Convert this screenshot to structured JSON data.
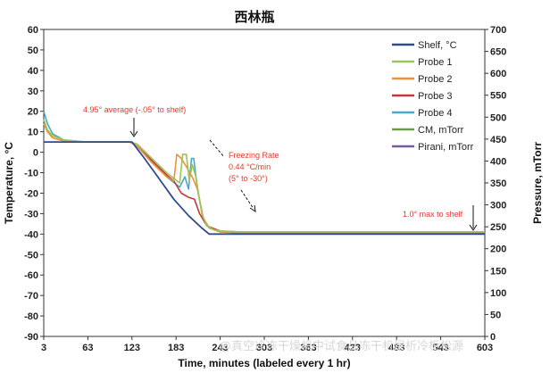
{
  "chart_data": {
    "type": "line",
    "title": "西林瓶",
    "xlabel": "Time, minutes (labeled every 1 hr)",
    "ylabel": "Temperature, °C",
    "y2label": "Pressure, mTorr",
    "xlim": [
      3,
      603
    ],
    "ylim": [
      -90,
      60
    ],
    "y2lim": [
      0,
      700
    ],
    "x_ticks": [
      "3",
      "63",
      "123",
      "183",
      "243",
      "303",
      "363",
      "423",
      "483",
      "543",
      "603"
    ],
    "y_ticks": [
      60,
      50,
      40,
      30,
      20,
      10,
      0,
      -10,
      -20,
      -30,
      -40,
      -50,
      -60,
      -70,
      -80,
      -90
    ],
    "y2_ticks": [
      700,
      650,
      600,
      550,
      500,
      450,
      400,
      350,
      300,
      250,
      200,
      150,
      100,
      50,
      0
    ],
    "grid": false,
    "legend_position": "top-right",
    "series": [
      {
        "name": "Shelf, °C",
        "axis": "left",
        "color": "#2f4b8f",
        "x": [
          3,
          123,
          140,
          160,
          180,
          200,
          218,
          228,
          243,
          303,
          363,
          423,
          483,
          543,
          603
        ],
        "y": [
          5,
          5,
          -3,
          -13,
          -23,
          -31,
          -37,
          -40,
          -40,
          -40,
          -40,
          -40,
          -40,
          -40,
          -40
        ]
      },
      {
        "name": "Probe 1",
        "axis": "left",
        "color": "#9bc45a",
        "x": [
          3,
          8,
          15,
          30,
          60,
          120,
          130,
          150,
          170,
          188,
          192,
          197,
          201,
          205,
          210,
          218,
          225,
          235,
          243,
          273,
          303,
          363,
          423,
          483,
          543,
          603
        ],
        "y": [
          16,
          11,
          8,
          6,
          5,
          5,
          4,
          -3,
          -10,
          -15,
          -1,
          -1,
          -14,
          -6,
          -12,
          -30,
          -36,
          -38,
          -38.5,
          -39,
          -39,
          -39,
          -39,
          -39,
          -39,
          -39
        ]
      },
      {
        "name": "Probe 2",
        "axis": "left",
        "color": "#f0913a",
        "x": [
          3,
          8,
          15,
          30,
          60,
          120,
          130,
          150,
          170,
          180,
          184,
          190,
          197,
          205,
          212,
          220,
          228,
          243,
          273,
          303,
          363,
          423,
          483,
          543,
          603
        ],
        "y": [
          14,
          10,
          7,
          5.5,
          5,
          5,
          3,
          -5,
          -12,
          -14,
          -1,
          -3,
          -7,
          -12,
          -18,
          -32,
          -37,
          -39,
          -39,
          -39,
          -39,
          -39,
          -39,
          -39,
          -39
        ]
      },
      {
        "name": "Probe 3",
        "axis": "left",
        "color": "#c0393b",
        "x": [
          120,
          130,
          150,
          170,
          180,
          190,
          200,
          208,
          215,
          225,
          243,
          273,
          303,
          363,
          423,
          483,
          543,
          603
        ],
        "y": [
          5,
          3,
          -4,
          -11,
          -14,
          -20,
          -22,
          -23,
          -30,
          -36,
          -38.5,
          -39,
          -39,
          -39,
          -39,
          -39,
          -39,
          -39
        ]
      },
      {
        "name": "Probe 4",
        "axis": "left",
        "color": "#4aa8c8",
        "x": [
          3,
          8,
          15,
          30,
          60,
          120,
          130,
          150,
          170,
          188,
          195,
          200,
          204,
          207,
          212,
          220,
          228,
          243,
          273,
          303,
          363,
          423,
          483,
          543,
          603
        ],
        "y": [
          20,
          14,
          9,
          6,
          5,
          5,
          3,
          -5,
          -12,
          -17,
          -12,
          -18,
          -3,
          -3,
          -18,
          -33,
          -37,
          -39,
          -39.5,
          -39.5,
          -39.5,
          -39.5,
          -39.5,
          -39.5,
          -39.5
        ]
      },
      {
        "name": "CM, mTorr",
        "axis": "right",
        "color": "#6b9e44",
        "x": [
          3,
          603
        ],
        "y": [
          null,
          null
        ]
      },
      {
        "name": "Pirani, mTorr",
        "axis": "right",
        "color": "#7a5a9e",
        "x": [
          3,
          603
        ],
        "y": [
          null,
          null
        ]
      }
    ],
    "annotations": [
      {
        "text": "4.95° average (-.05° to shelf)",
        "color": "#e03a2c"
      },
      {
        "text": "Freezing Rate",
        "color": "#e03a2c"
      },
      {
        "text": "0.44 °C/min",
        "color": "#e03a2c"
      },
      {
        "text": "(5° to -30°)",
        "color": "#e03a2c"
      },
      {
        "text": "1.0° max to shelf",
        "color": "#e03a2c"
      }
    ]
  },
  "watermark": "@真空冷冻干燥机中试食品冻干机层析冷柜松源"
}
